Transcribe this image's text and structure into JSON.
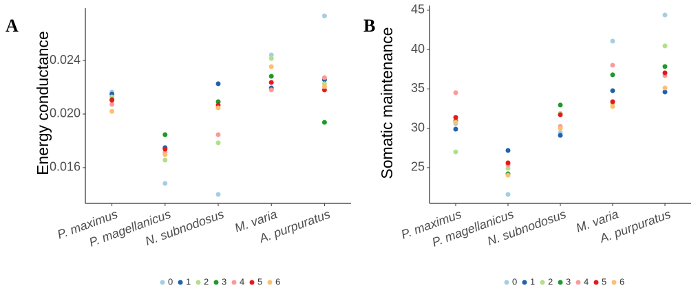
{
  "chart_data": [
    {
      "type": "scatter",
      "label": "A",
      "y_label": "Energy conductance",
      "categories": [
        "P. maximus",
        "P. magellanicus",
        "N. subnodosus",
        "M. varia",
        "A. purpuratus"
      ],
      "ylim": [
        0.01333,
        0.0279
      ],
      "yticks": [
        0.016,
        {
          "value": 0.02,
          "label": "0.020"
        },
        0.024
      ],
      "series": [
        {
          "name": "0",
          "color": "#a6cee3",
          "values": [
            0.02164,
            0.01482,
            0.014,
            0.02441,
            0.02733
          ]
        },
        {
          "name": "1",
          "color": "#1f62ad",
          "values": [
            0.02149,
            0.01749,
            0.02226,
            0.02195,
            0.02256
          ]
        },
        {
          "name": "2",
          "color": "#b2df8a",
          "values": [
            0.02128,
            0.01656,
            0.01785,
            0.02415,
            0.02226
          ]
        },
        {
          "name": "3",
          "color": "#1d9a2a",
          "values": [
            0.02108,
            0.01846,
            0.02092,
            0.02282,
            0.01938
          ]
        },
        {
          "name": "4",
          "color": "#fb9a99",
          "values": [
            0.02072,
            0.01713,
            0.01846,
            0.0218,
            0.02272
          ]
        },
        {
          "name": "5",
          "color": "#e31a1c",
          "values": [
            0.02103,
            0.01738,
            0.02067,
            0.02236,
            0.0218
          ]
        },
        {
          "name": "6",
          "color": "#fdbf6f",
          "values": [
            0.0202,
            0.01697,
            0.02046,
            0.02354,
            0.02205
          ]
        }
      ]
    },
    {
      "type": "scatter",
      "label": "B",
      "y_label": "Somatic maintenance",
      "categories": [
        "P. maximus",
        "P. magellanicus",
        "N. subnodosus",
        "M. varia",
        "A. purpuratus"
      ],
      "ylim": [
        20.46,
        45.6
      ],
      "yticks": [
        25,
        30,
        35,
        40,
        45
      ],
      "series": [
        {
          "name": "0",
          "color": "#a6cee3",
          "values": [
            30.59,
            21.59,
            29.45,
            41.07,
            44.39
          ]
        },
        {
          "name": "1",
          "color": "#1f62ad",
          "values": [
            29.89,
            27.18,
            29.1,
            34.78,
            34.61
          ]
        },
        {
          "name": "2",
          "color": "#b2df8a",
          "values": [
            27.0,
            24.91,
            31.9,
            33.1,
            40.46
          ]
        },
        {
          "name": "3",
          "color": "#1d9a2a",
          "values": [
            30.94,
            24.21,
            32.95,
            36.79,
            37.84
          ]
        },
        {
          "name": "4",
          "color": "#fb9a99",
          "values": [
            34.52,
            25.35,
            30.24,
            38.01,
            36.7
          ]
        },
        {
          "name": "5",
          "color": "#e31a1c",
          "values": [
            31.38,
            25.61,
            31.72,
            33.38,
            37.05
          ]
        },
        {
          "name": "6",
          "color": "#fdbf6f",
          "values": [
            30.76,
            24.04,
            30.0,
            32.77,
            35.13
          ]
        }
      ]
    }
  ]
}
